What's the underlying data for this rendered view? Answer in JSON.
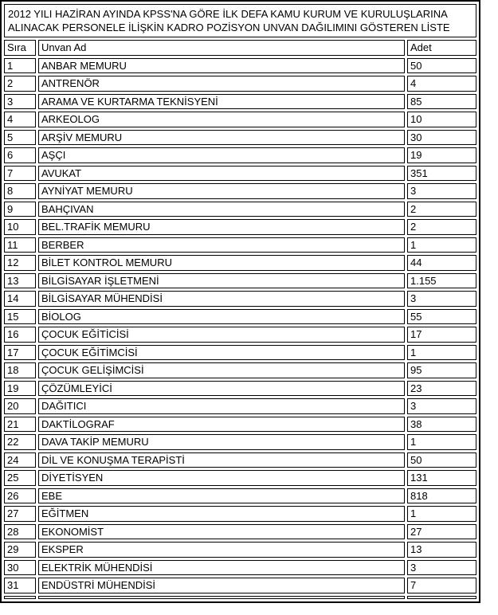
{
  "document": {
    "title": "2012 YILI HAZİRAN AYINDA KPSS'NA GÖRE İLK DEFA KAMU KURUM VE KURULUŞLARINA ALINACAK PERSONELE İLİŞKİN KADRO POZİSYON UNVAN DAĞILIMINI GÖSTEREN LİSTE"
  },
  "table": {
    "columns": [
      "Sıra",
      "Unvan Ad",
      "Adet"
    ],
    "rows": [
      [
        "1",
        "ANBAR MEMURU",
        "50"
      ],
      [
        "2",
        "ANTRENÖR",
        "4"
      ],
      [
        "3",
        "ARAMA VE KURTARMA TEKNİSYENİ",
        "85"
      ],
      [
        "4",
        "ARKEOLOG",
        "10"
      ],
      [
        "5",
        "ARŞİV MEMURU",
        "30"
      ],
      [
        "6",
        "AŞÇI",
        "19"
      ],
      [
        "7",
        "AVUKAT",
        "351"
      ],
      [
        "8",
        "AYNİYAT MEMURU",
        "3"
      ],
      [
        "9",
        "BAHÇIVAN",
        "2"
      ],
      [
        "10",
        "BEL.TRAFİK MEMURU",
        "2"
      ],
      [
        "11",
        "BERBER",
        "1"
      ],
      [
        "12",
        "BİLET KONTROL MEMURU",
        "44"
      ],
      [
        "13",
        "BİLGİSAYAR İŞLETMENİ",
        "1.155"
      ],
      [
        "14",
        "BİLGİSAYAR MÜHENDİSİ",
        "3"
      ],
      [
        "15",
        "BİOLOG",
        "55"
      ],
      [
        "16",
        "ÇOCUK EĞİTİCİSİ",
        "17"
      ],
      [
        "17",
        "ÇOCUK EĞİTİMCİSİ",
        "1"
      ],
      [
        "18",
        "ÇOCUK GELİŞİMCİSİ",
        "95"
      ],
      [
        "19",
        "ÇÖZÜMLEYİCİ",
        "23"
      ],
      [
        "20",
        "DAĞITICI",
        "3"
      ],
      [
        "21",
        "DAKTİLOGRAF",
        "38"
      ],
      [
        "22",
        "DAVA TAKİP MEMURU",
        "1"
      ],
      [
        "24",
        "DİL VE KONUŞMA TERAPİSTİ",
        "50"
      ],
      [
        "25",
        "DİYETİSYEN",
        "131"
      ],
      [
        "26",
        "EBE",
        "818"
      ],
      [
        "27",
        "EĞİTMEN",
        "1"
      ],
      [
        "28",
        "EKONOMİST",
        "27"
      ],
      [
        "29",
        "EKSPER",
        "13"
      ],
      [
        "30",
        "ELEKTRİK MÜHENDİSİ",
        "3"
      ],
      [
        "31",
        "ENDÜSTRİ MÜHENDİSİ",
        "7"
      ]
    ]
  },
  "colors": {
    "border": "#000000",
    "text": "#000000",
    "background": "#ffffff"
  }
}
